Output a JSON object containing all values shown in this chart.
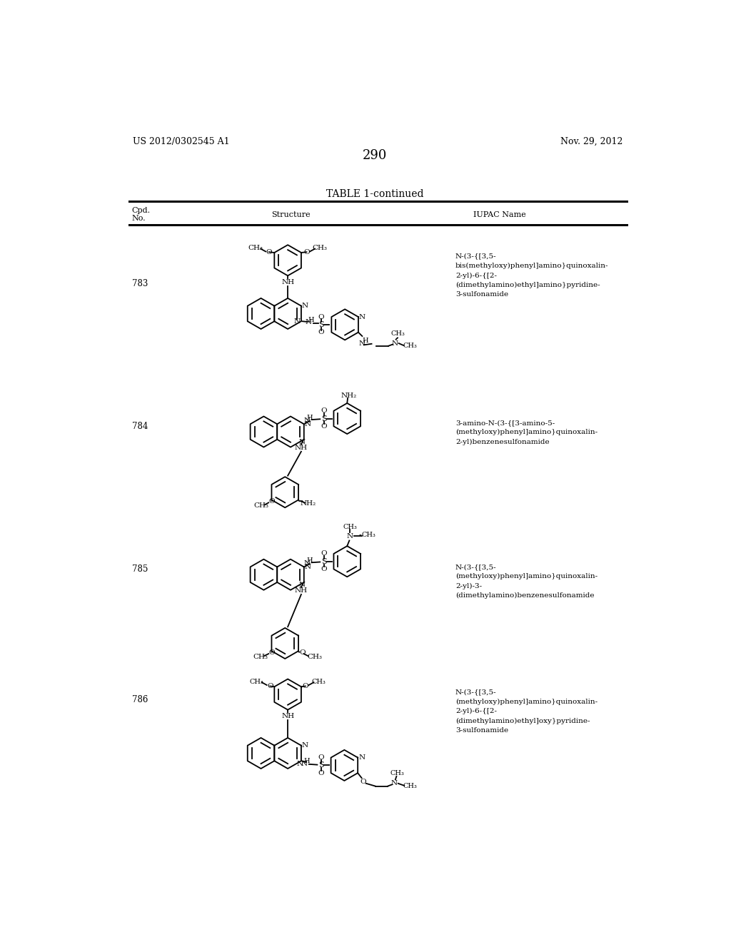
{
  "page_number": "290",
  "patent_number": "US 2012/0302545 A1",
  "patent_date": "Nov. 29, 2012",
  "table_title": "TABLE 1-continued",
  "background_color": "#ffffff",
  "text_color": "#000000",
  "compounds": [
    {
      "number": "783",
      "iupac": "N-(3-{[3,5-\nbis(methyloxy)phenyl]amino}quinoxalin-\n2-yl)-6-{[2-\n(dimethylamino)ethyl]amino}pyridine-\n3-sulfonamide"
    },
    {
      "number": "784",
      "iupac": "3-amino-N-(3-{[3-amino-5-\n(methyloxy)phenyl]amino}quinoxalin-\n2-yl)benzenesulfonamide"
    },
    {
      "number": "785",
      "iupac": "N-(3-{[3,5-\n(methyloxy)phenyl]amino}quinoxalin-\n2-yl)-3-\n(dimethylamino)benzenesulfonamide"
    },
    {
      "number": "786",
      "iupac": "N-(3-{[3,5-\n(methyloxy)phenyl]amino}quinoxalin-\n2-yl)-6-{[2-\n(dimethylamino)ethyl]oxy}pyridine-\n3-sulfonamide"
    }
  ]
}
